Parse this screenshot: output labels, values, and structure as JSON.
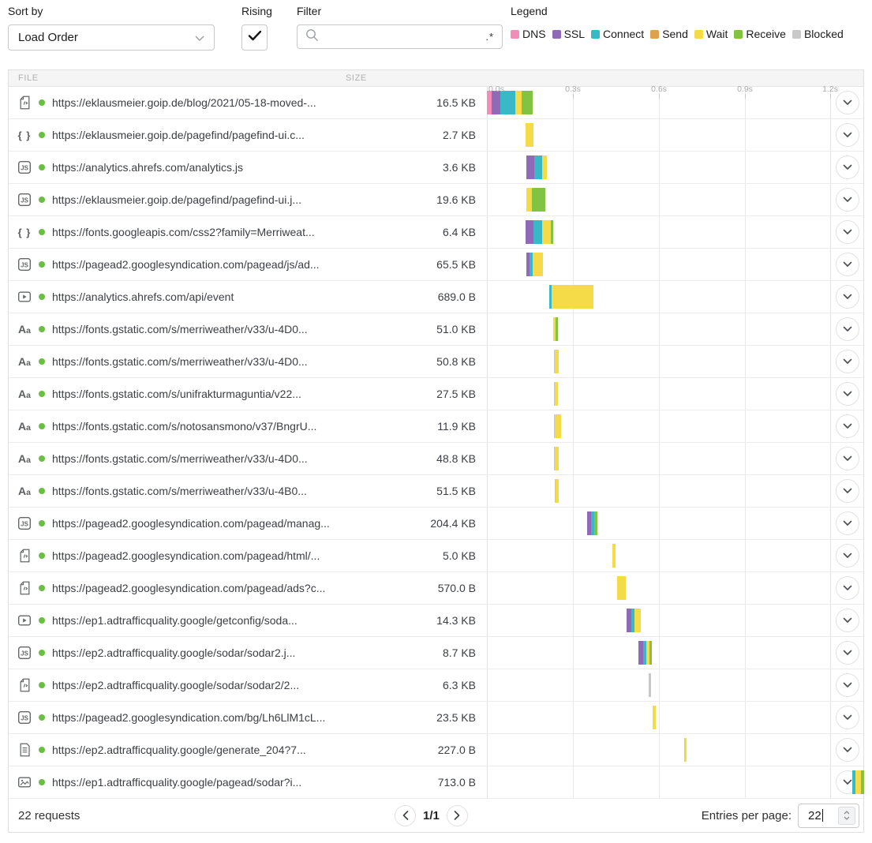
{
  "toolbar": {
    "sort_by_label": "Sort by",
    "sort_value": "Load Order",
    "rising_label": "Rising",
    "rising_checked": true,
    "filter_label": "Filter",
    "filter_value": "",
    "filter_regex_hint": ".*",
    "legend_label": "Legend",
    "legend": [
      {
        "name": "DNS",
        "key": "dns"
      },
      {
        "name": "SSL",
        "key": "ssl"
      },
      {
        "name": "Connect",
        "key": "connect"
      },
      {
        "name": "Send",
        "key": "send"
      },
      {
        "name": "Wait",
        "key": "wait"
      },
      {
        "name": "Receive",
        "key": "receive"
      },
      {
        "name": "Blocked",
        "key": "blocked"
      }
    ]
  },
  "colors": {
    "dns": "#f28cb8",
    "ssl": "#9069b9",
    "connect": "#39b8c8",
    "send": "#dfa14e",
    "wait": "#f5db48",
    "receive": "#82c341",
    "blocked": "#c9c9c9",
    "status_dot": "#6abe41"
  },
  "table": {
    "columns": {
      "file": "FILE",
      "size": "SIZE"
    },
    "timeline_ticks": [
      "0.0s",
      "0.3s",
      "0.6s",
      "0.9s",
      "1.2s"
    ],
    "rows": [
      {
        "icon": "html-doc",
        "url": "https://eklausmeier.goip.de/blog/2021/05-18-moved-...",
        "size": "16.5 KB",
        "bar": {
          "start": 0,
          "segments": [
            [
              "dns",
              6
            ],
            [
              "ssl",
              11
            ],
            [
              "connect",
              19
            ],
            [
              "wait",
              8
            ],
            [
              "receive",
              14
            ]
          ]
        }
      },
      {
        "icon": "css-braces",
        "url": "https://eklausmeier.goip.de/pagefind/pagefind-ui.c...",
        "size": "2.7 KB",
        "bar": {
          "start": 49,
          "segments": [
            [
              "wait",
              10
            ]
          ]
        }
      },
      {
        "icon": "js",
        "url": "https://analytics.ahrefs.com/analytics.js",
        "size": "3.6 KB",
        "bar": {
          "start": 50,
          "segments": [
            [
              "ssl",
              10
            ],
            [
              "connect",
              10
            ],
            [
              "wait",
              6
            ]
          ]
        }
      },
      {
        "icon": "js",
        "url": "https://eklausmeier.goip.de/pagefind/pagefind-ui.j...",
        "size": "19.6 KB",
        "bar": {
          "start": 50,
          "segments": [
            [
              "wait",
              7
            ],
            [
              "receive",
              17
            ]
          ]
        }
      },
      {
        "icon": "css-braces",
        "url": "https://fonts.googleapis.com/css2?family=Merriweat...",
        "size": "6.4 KB",
        "bar": {
          "start": 49,
          "segments": [
            [
              "ssl",
              10
            ],
            [
              "connect",
              11
            ],
            [
              "wait",
              11
            ],
            [
              "receive",
              3
            ]
          ]
        }
      },
      {
        "icon": "js",
        "url": "https://pagead2.googlesyndication.com/pagead/js/ad...",
        "size": "65.5 KB",
        "bar": {
          "start": 50,
          "segments": [
            [
              "ssl",
              4
            ],
            [
              "connect",
              4
            ],
            [
              "wait",
              13
            ]
          ]
        }
      },
      {
        "icon": "play",
        "url": "https://analytics.ahrefs.com/api/event",
        "size": "689.0 B",
        "bar": {
          "start": 79,
          "segments": [
            [
              "connect",
              3
            ],
            [
              "wait",
              53
            ]
          ]
        }
      },
      {
        "icon": "font",
        "url": "https://fonts.gstatic.com/s/merriweather/v33/u-4D0...",
        "size": "51.0 KB",
        "bar": {
          "start": 84,
          "segments": [
            [
              "wait",
              3
            ],
            [
              "receive",
              3
            ]
          ]
        }
      },
      {
        "icon": "font",
        "url": "https://fonts.gstatic.com/s/merriweather/v33/u-4D0...",
        "size": "50.8 KB",
        "bar": {
          "start": 85,
          "segments": [
            [
              "blocked",
              1
            ],
            [
              "wait",
              5
            ]
          ]
        }
      },
      {
        "icon": "font",
        "url": "https://fonts.gstatic.com/s/unifrakturmaguntia/v22...",
        "size": "27.5 KB",
        "bar": {
          "start": 85,
          "segments": [
            [
              "blocked",
              1
            ],
            [
              "wait",
              4
            ]
          ]
        }
      },
      {
        "icon": "font",
        "url": "https://fonts.gstatic.com/s/notosansmono/v37/BngrU...",
        "size": "11.9 KB",
        "bar": {
          "start": 85,
          "segments": [
            [
              "blocked",
              1
            ],
            [
              "wait",
              8
            ]
          ]
        }
      },
      {
        "icon": "font",
        "url": "https://fonts.gstatic.com/s/merriweather/v33/u-4D0...",
        "size": "48.8 KB",
        "bar": {
          "start": 85,
          "segments": [
            [
              "blocked",
              1
            ],
            [
              "wait",
              5
            ]
          ]
        }
      },
      {
        "icon": "font",
        "url": "https://fonts.gstatic.com/s/merriweather/v33/u-4B0...",
        "size": "51.5 KB",
        "bar": {
          "start": 86,
          "segments": [
            [
              "blocked",
              1
            ],
            [
              "wait",
              4
            ]
          ]
        }
      },
      {
        "icon": "js",
        "url": "https://pagead2.googlesyndication.com/pagead/manag...",
        "size": "204.4 KB",
        "bar": {
          "start": 127,
          "segments": [
            [
              "ssl",
              5
            ],
            [
              "connect",
              4
            ],
            [
              "receive",
              4
            ]
          ]
        }
      },
      {
        "icon": "html-doc",
        "url": "https://pagead2.googlesyndication.com/pagead/html/...",
        "size": "5.0 KB",
        "bar": {
          "start": 159,
          "segments": [
            [
              "wait",
              4
            ]
          ]
        }
      },
      {
        "icon": "html-doc",
        "url": "https://pagead2.googlesyndication.com/pagead/ads?c...",
        "size": "570.0 B",
        "bar": {
          "start": 165,
          "segments": [
            [
              "wait",
              11
            ]
          ]
        }
      },
      {
        "icon": "play",
        "url": "https://ep1.adtrafficquality.google/getconfig/soda...",
        "size": "14.3 KB",
        "bar": {
          "start": 177,
          "segments": [
            [
              "ssl",
              6
            ],
            [
              "connect",
              4
            ],
            [
              "wait",
              8
            ]
          ]
        }
      },
      {
        "icon": "js",
        "url": "https://ep2.adtrafficquality.google/sodar/sodar2.j...",
        "size": "8.7 KB",
        "bar": {
          "start": 192,
          "segments": [
            [
              "ssl",
              6
            ],
            [
              "connect",
              4
            ],
            [
              "wait",
              4
            ],
            [
              "receive",
              3
            ]
          ]
        }
      },
      {
        "icon": "html-doc",
        "url": "https://ep2.adtrafficquality.google/sodar/sodar2/2...",
        "size": "6.3 KB",
        "bar": {
          "start": 205,
          "segments": [
            [
              "blocked",
              3
            ]
          ]
        }
      },
      {
        "icon": "js",
        "url": "https://pagead2.googlesyndication.com/bg/Lh6LlM1cL...",
        "size": "23.5 KB",
        "bar": {
          "start": 210,
          "segments": [
            [
              "wait",
              4
            ]
          ]
        }
      },
      {
        "icon": "text-doc",
        "url": "https://ep2.adtrafficquality.google/generate_204?7...",
        "size": "227.0 B",
        "bar": {
          "start": 250,
          "segments": [
            [
              "blocked",
              1
            ],
            [
              "wait",
              2
            ]
          ]
        }
      },
      {
        "icon": "image",
        "url": "https://ep1.adtrafficquality.google/pagead/sodar?i...",
        "size": "713.0 B",
        "bar": {
          "start": 463,
          "segments": [
            [
              "connect",
              4
            ],
            [
              "wait",
              7
            ],
            [
              "receive",
              4
            ]
          ]
        }
      }
    ]
  },
  "footer": {
    "requests_label": "22 requests",
    "page_indicator": "1/1",
    "entries_label": "Entries per page:",
    "entries_value": "22"
  }
}
